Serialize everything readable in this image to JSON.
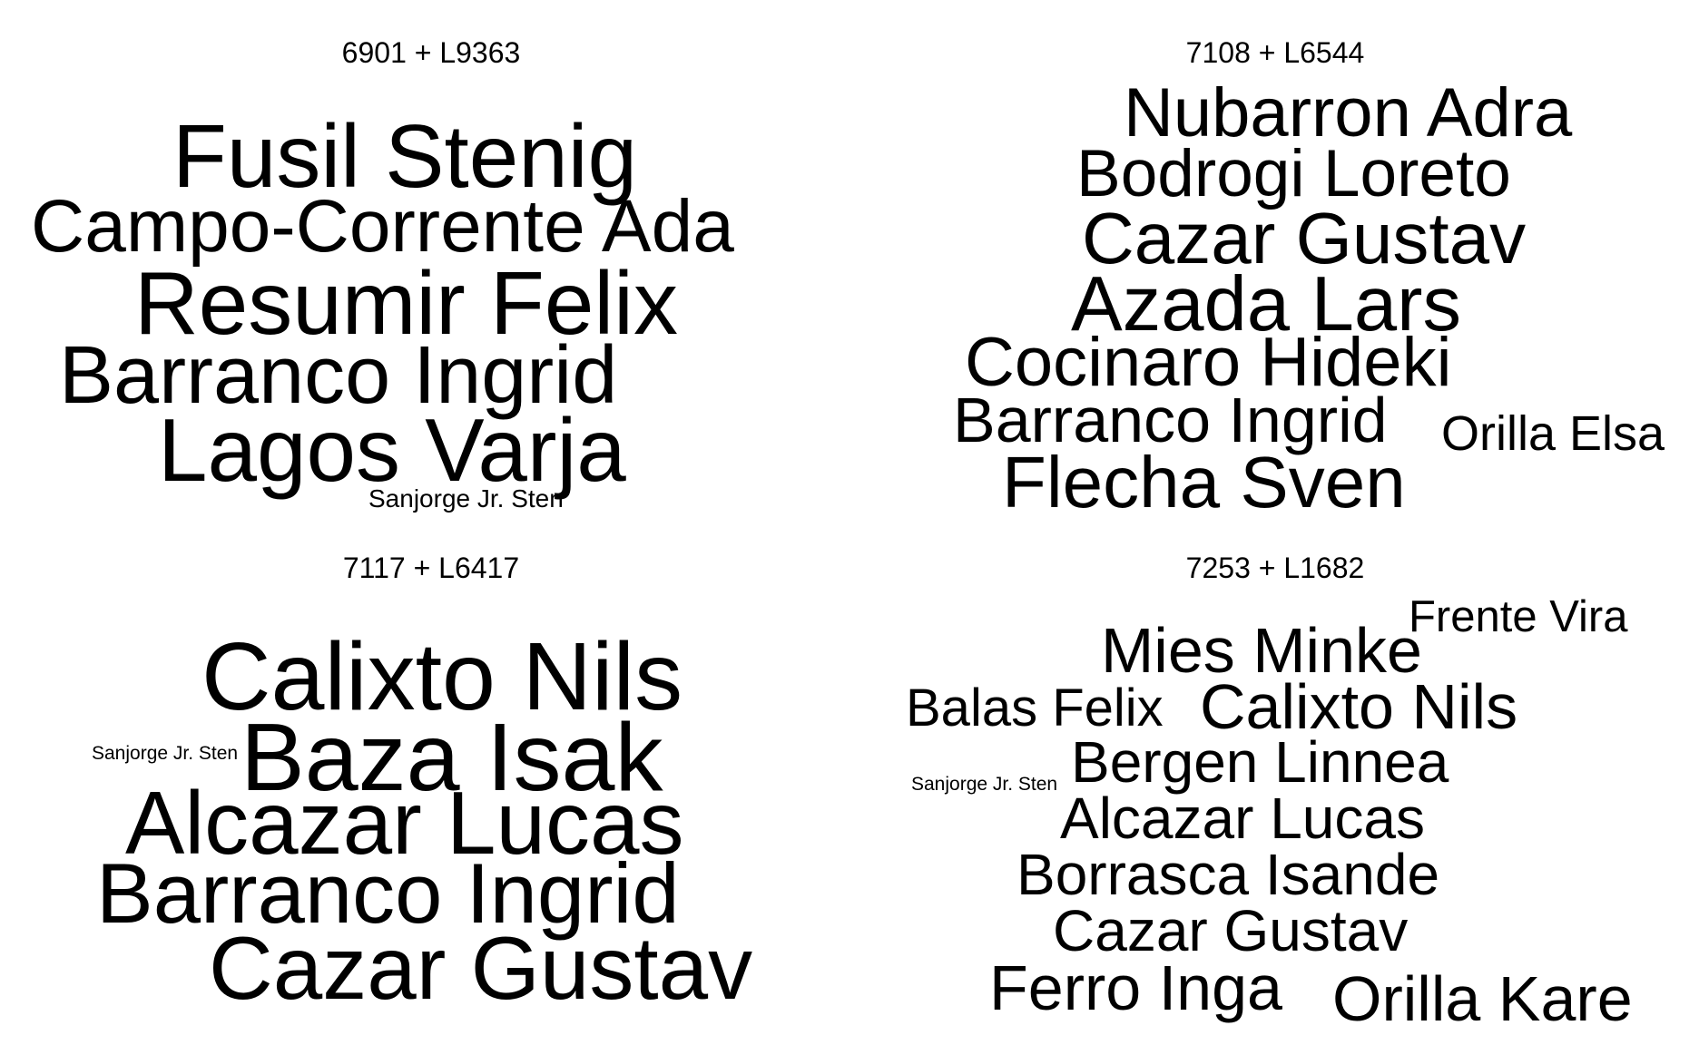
{
  "panels": [
    {
      "title": "6901 + L9363",
      "words": [
        {
          "text": "Fusil Stenig"
        },
        {
          "text": "Campo-Corrente Ada"
        },
        {
          "text": "Resumir Felix"
        },
        {
          "text": "Barranco Ingrid"
        },
        {
          "text": "Lagos Varja"
        },
        {
          "text": "Sanjorge Jr. Sten"
        }
      ]
    },
    {
      "title": "7108 + L6544",
      "words": [
        {
          "text": "Nubarron Adra"
        },
        {
          "text": "Bodrogi Loreto"
        },
        {
          "text": "Cazar Gustav"
        },
        {
          "text": "Azada Lars"
        },
        {
          "text": "Cocinaro Hideki"
        },
        {
          "text": "Barranco Ingrid"
        },
        {
          "text": "Orilla Elsa"
        },
        {
          "text": "Flecha Sven"
        }
      ]
    },
    {
      "title": "7117 + L6417",
      "words": [
        {
          "text": "Calixto Nils"
        },
        {
          "text": "Baza Isak"
        },
        {
          "text": "Sanjorge Jr. Sten"
        },
        {
          "text": "Alcazar Lucas"
        },
        {
          "text": "Barranco Ingrid"
        },
        {
          "text": "Cazar Gustav"
        }
      ]
    },
    {
      "title": "7253 + L1682",
      "words": [
        {
          "text": "Frente Vira"
        },
        {
          "text": "Mies Minke"
        },
        {
          "text": "Balas Felix"
        },
        {
          "text": "Calixto Nils"
        },
        {
          "text": "Bergen Linnea"
        },
        {
          "text": "Sanjorge Jr. Sten"
        },
        {
          "text": "Alcazar Lucas"
        },
        {
          "text": "Borrasca Isande"
        },
        {
          "text": "Cazar Gustav"
        },
        {
          "text": "Ferro Inga"
        },
        {
          "text": "Orilla Kare"
        }
      ]
    }
  ]
}
